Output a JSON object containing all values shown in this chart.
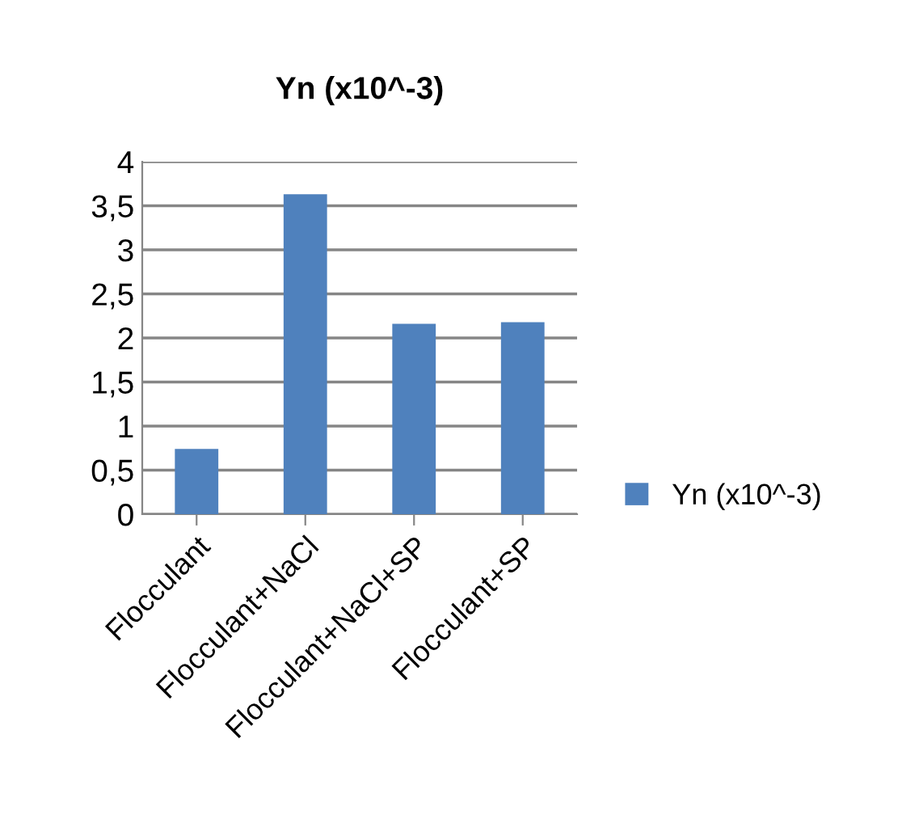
{
  "chart_data": {
    "type": "bar",
    "title": "Yn (x10^-3)",
    "categories": [
      "Flocculant",
      "Flocculant+NaCl",
      "Flocculant+NaCl+SP",
      "Flocculant+SP"
    ],
    "series": [
      {
        "name": "Yn (x10^-3)",
        "color": "#4f81bd",
        "values": [
          0.74,
          3.63,
          2.16,
          2.18
        ]
      }
    ],
    "ylim": [
      0,
      4
    ],
    "yticks": [
      0,
      {
        "value": 0.5,
        "label": "0,5"
      },
      1,
      {
        "value": 1.5,
        "label": "1,5"
      },
      2,
      {
        "value": 2.5,
        "label": "2,5"
      },
      3,
      {
        "value": 3.5,
        "label": "3,5"
      },
      4
    ],
    "grid": "y",
    "legend": "right"
  }
}
